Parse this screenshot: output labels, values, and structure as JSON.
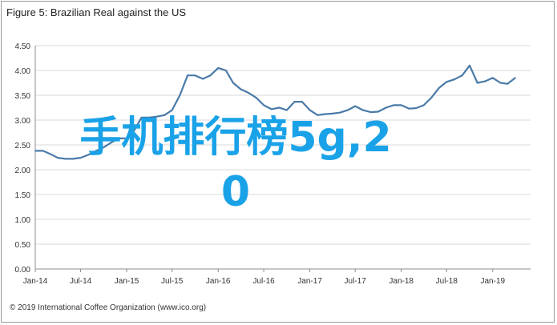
{
  "figure": {
    "title": "Figure 5: Brazilian Real against the US",
    "footer": "© 2019 International Coffee Organization (www.ico.org)"
  },
  "overlay": {
    "line1": "手机排行榜5g,2",
    "line2": "0",
    "color": "#1aa2e8"
  },
  "colors": {
    "line": "#4a7aa8",
    "grid": "#d9d9d9",
    "axis": "#8c8c8c",
    "tick_label": "#333333"
  },
  "chart_data": {
    "type": "line",
    "title": "",
    "xlabel": "",
    "ylabel": "",
    "ylim": [
      0,
      4.5
    ],
    "yticks": [
      "4.50",
      "4.00",
      "3.50",
      "3.00",
      "2.50",
      "2.00",
      "1.50",
      "1.00",
      "0.50",
      "0.00"
    ],
    "xticks": [
      "Jan-14",
      "Jul-14",
      "Jan-15",
      "Jul-15",
      "Jan-16",
      "Jul-16",
      "Jan-17",
      "Jul-17",
      "Jan-18",
      "Jul-18",
      "Jan-19"
    ],
    "grid": true,
    "x": [
      "2014-01",
      "2014-02",
      "2014-03",
      "2014-04",
      "2014-05",
      "2014-06",
      "2014-07",
      "2014-08",
      "2014-09",
      "2014-10",
      "2014-11",
      "2014-12",
      "2015-01",
      "2015-02",
      "2015-03",
      "2015-04",
      "2015-05",
      "2015-06",
      "2015-07",
      "2015-08",
      "2015-09",
      "2015-10",
      "2015-11",
      "2015-12",
      "2016-01",
      "2016-02",
      "2016-03",
      "2016-04",
      "2016-05",
      "2016-06",
      "2016-07",
      "2016-08",
      "2016-09",
      "2016-10",
      "2016-11",
      "2016-12",
      "2017-01",
      "2017-02",
      "2017-03",
      "2017-04",
      "2017-05",
      "2017-06",
      "2017-07",
      "2017-08",
      "2017-09",
      "2017-10",
      "2017-11",
      "2017-12",
      "2018-01",
      "2018-02",
      "2018-03",
      "2018-04",
      "2018-05",
      "2018-06",
      "2018-07",
      "2018-08",
      "2018-09",
      "2018-10",
      "2018-11",
      "2018-12",
      "2019-01",
      "2019-02",
      "2019-03",
      "2019-04"
    ],
    "series": [
      {
        "values": [
          2.38,
          2.38,
          2.32,
          2.24,
          2.22,
          2.22,
          2.24,
          2.3,
          2.38,
          2.45,
          2.55,
          2.63,
          2.63,
          2.8,
          3.05,
          3.05,
          3.07,
          3.1,
          3.2,
          3.5,
          3.9,
          3.9,
          3.83,
          3.9,
          4.05,
          4.0,
          3.75,
          3.62,
          3.55,
          3.45,
          3.3,
          3.22,
          3.25,
          3.2,
          3.37,
          3.37,
          3.2,
          3.1,
          3.12,
          3.13,
          3.15,
          3.2,
          3.28,
          3.2,
          3.16,
          3.17,
          3.25,
          3.3,
          3.3,
          3.23,
          3.24,
          3.3,
          3.45,
          3.65,
          3.77,
          3.82,
          3.9,
          4.1,
          3.75,
          3.78,
          3.85,
          3.75,
          3.73,
          3.85
        ]
      }
    ]
  }
}
